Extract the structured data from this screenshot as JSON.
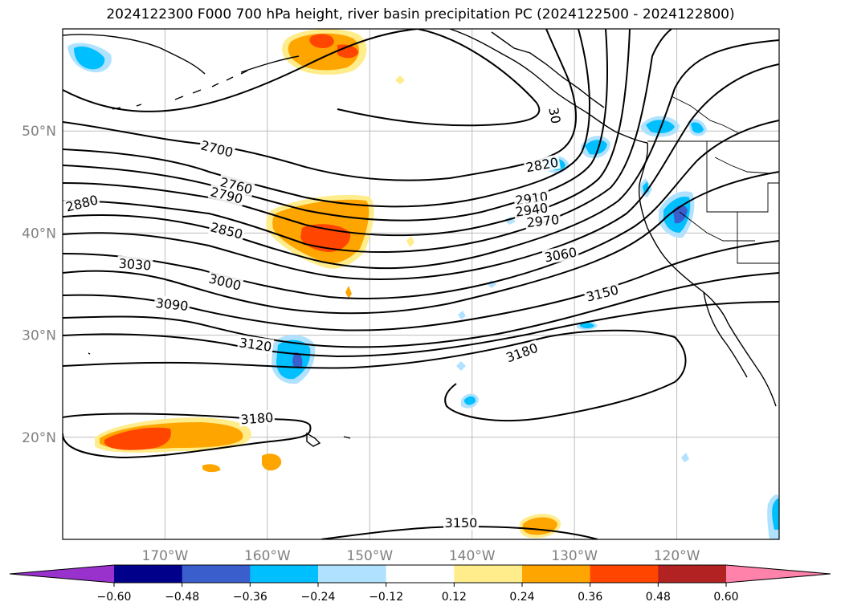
{
  "title": "2024122300 F000 700 hPa height, river basin precipitation PC (2024122500 - 2024122800)",
  "map": {
    "projection": "plate-carree",
    "lon_range": [
      -180,
      -110
    ],
    "lat_range": [
      10,
      60
    ],
    "gridlines": true,
    "lat_labels": [
      {
        "value": 50,
        "text": "50°N"
      },
      {
        "value": 40,
        "text": "40°N"
      },
      {
        "value": 30,
        "text": "30°N"
      },
      {
        "value": 20,
        "text": "20°N"
      }
    ],
    "lon_labels": [
      {
        "value": -170,
        "text": "170°W"
      },
      {
        "value": -160,
        "text": "160°W"
      },
      {
        "value": -150,
        "text": "150°W"
      },
      {
        "value": -140,
        "text": "140°W"
      },
      {
        "value": -130,
        "text": "130°W"
      },
      {
        "value": -120,
        "text": "120°W"
      }
    ]
  },
  "height_contours": {
    "field": "700 hPa height",
    "units": "m",
    "interval": 30,
    "labels": [
      "2700",
      "2760",
      "2790",
      "2820",
      "2850",
      "2880",
      "2910",
      "2940",
      "2970",
      "3000",
      "3030",
      "3060",
      "3090",
      "3120",
      "3150",
      "3150",
      "3180",
      "3180",
      "30"
    ]
  },
  "precip_pc": {
    "field": "river basin precipitation PC",
    "period": "2024122500 - 2024122800",
    "colorbar": {
      "orientation": "horizontal",
      "extend": "both",
      "levels": [
        -0.6,
        -0.48,
        -0.36,
        -0.24,
        -0.12,
        0.12,
        0.24,
        0.36,
        0.48,
        0.6
      ],
      "tick_labels": [
        "−0.60",
        "−0.48",
        "−0.36",
        "−0.24",
        "−0.12",
        "0.12",
        "0.24",
        "0.36",
        "0.48",
        "0.60"
      ],
      "colors": [
        "#9932cc",
        "#00008b",
        "#3a5fcd",
        "#00bfff",
        "#b0e2ff",
        "#ffffff",
        "#ffec8b",
        "#ffa500",
        "#ff4500",
        "#b22222",
        "#ff82ab"
      ]
    }
  }
}
